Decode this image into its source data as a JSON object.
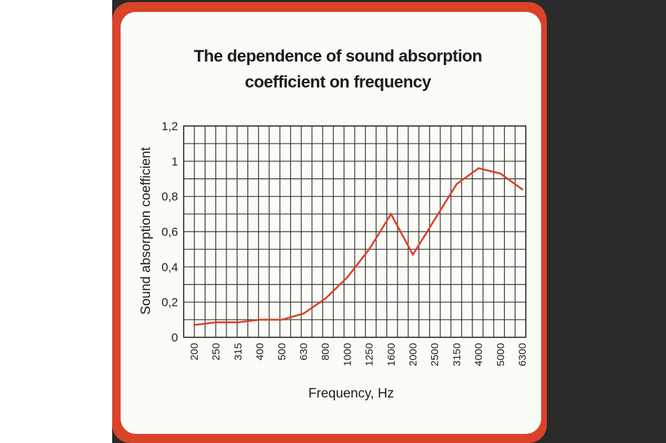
{
  "colors": {
    "card_border": "#d8432a",
    "card_bg": "#fbfbf8",
    "line": "#d8432a",
    "grid": "#333333"
  },
  "chart_data": {
    "type": "line",
    "title_lines": [
      "The dependence of sound absorption",
      "coefficient on frequency"
    ],
    "xlabel": "Frequency, Hz",
    "ylabel": "Sound absorption  coefficient",
    "x": [
      "200",
      "250",
      "315",
      "400",
      "500",
      "630",
      "800",
      "1000",
      "1250",
      "1600",
      "2000",
      "2500",
      "3150",
      "4000",
      "5000",
      "6300"
    ],
    "y_ticks": [
      "0",
      "0,2",
      "0,4",
      "0,6",
      "0,8",
      "1",
      "1,2"
    ],
    "ylim": [
      0,
      1.2
    ],
    "grid": true,
    "series": [
      {
        "values": [
          0.07,
          0.085,
          0.085,
          0.1,
          0.1,
          0.135,
          0.22,
          0.34,
          0.5,
          0.7,
          0.47,
          0.67,
          0.87,
          0.96,
          0.93,
          0.84
        ]
      }
    ]
  }
}
